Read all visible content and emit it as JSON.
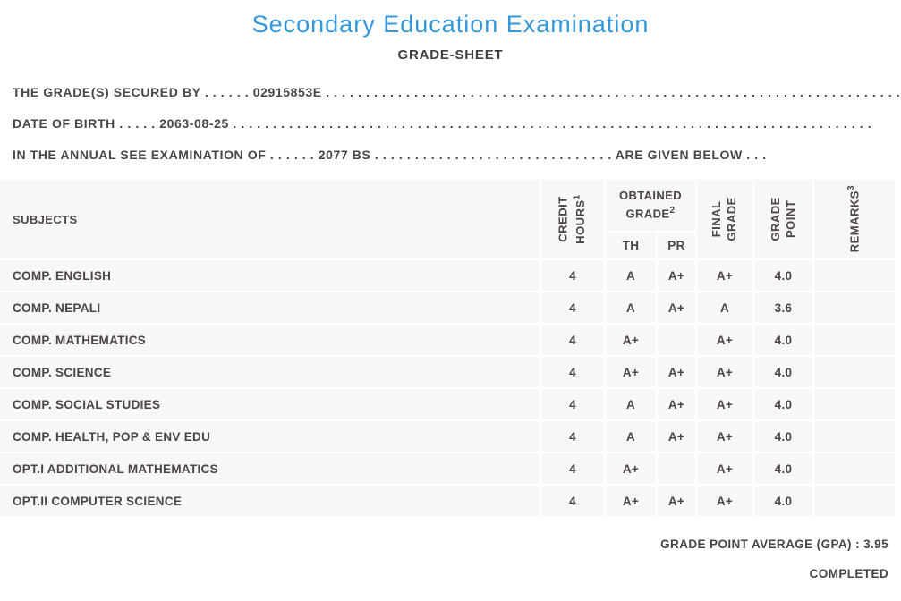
{
  "header": {
    "title": "Secondary Education Examination",
    "subtitle": "GRADE-SHEET"
  },
  "info_lines": [
    "THE GRADE(S) SECURED BY . . . . . . 02915853E . . . . . . . . . . . . . . . . . . . . . . . . . . . . . . . . . . . . . . . . . . . . . . . . . . . . . . . . . . . . . . . . . . . . . . . .",
    "DATE OF BIRTH . . . . . 2063-08-25 . . . . . . . . . . . . . . . . . . . . . . . . . . . . . . . . . . . . . . . . . . . . . . . . . . . . . . . . . . . . . . . . . . . . . . . . . . . . . . . .",
    "IN THE ANNUAL SEE EXAMINATION OF . . . . . . 2077 BS . . . . . . . . . . . . . . . . . . . . . . . . . . . . . . ARE GIVEN BELOW . . ."
  ],
  "table": {
    "headers": {
      "subjects": "SUBJECTS",
      "credit_hours": {
        "label": "CREDIT\nHOURS",
        "sup": "1"
      },
      "obtained_grade": {
        "label": "OBTAINED\nGRADE",
        "sup": "2"
      },
      "th": "TH",
      "pr": "PR",
      "final_grade": {
        "label": "FINAL\nGRADE"
      },
      "grade_point": {
        "label": "GRADE\nPOINT"
      },
      "remarks": {
        "label": "REMARKS",
        "sup": "3"
      }
    },
    "rows": [
      {
        "subject": "COMP. ENGLISH",
        "credit": "4",
        "th": "A",
        "pr": "A+",
        "final": "A+",
        "point": "4.0",
        "remarks": ""
      },
      {
        "subject": "COMP. NEPALI",
        "credit": "4",
        "th": "A",
        "pr": "A+",
        "final": "A",
        "point": "3.6",
        "remarks": ""
      },
      {
        "subject": "COMP. MATHEMATICS",
        "credit": "4",
        "th": "A+",
        "pr": "",
        "final": "A+",
        "point": "4.0",
        "remarks": ""
      },
      {
        "subject": "COMP. SCIENCE",
        "credit": "4",
        "th": "A+",
        "pr": "A+",
        "final": "A+",
        "point": "4.0",
        "remarks": ""
      },
      {
        "subject": "COMP. SOCIAL STUDIES",
        "credit": "4",
        "th": "A",
        "pr": "A+",
        "final": "A+",
        "point": "4.0",
        "remarks": ""
      },
      {
        "subject": "COMP. HEALTH, POP & ENV EDU",
        "credit": "4",
        "th": "A",
        "pr": "A+",
        "final": "A+",
        "point": "4.0",
        "remarks": ""
      },
      {
        "subject": "OPT.I ADDITIONAL MATHEMATICS",
        "credit": "4",
        "th": "A+",
        "pr": "",
        "final": "A+",
        "point": "4.0",
        "remarks": ""
      },
      {
        "subject": "OPT.II COMPUTER SCIENCE",
        "credit": "4",
        "th": "A+",
        "pr": "A+",
        "final": "A+",
        "point": "4.0",
        "remarks": ""
      }
    ]
  },
  "footer": {
    "gpa_line": "GRADE POINT AVERAGE (GPA) : 3.95",
    "status": "COMPLETED"
  },
  "colors": {
    "title_blue": "#3498db",
    "text": "#4a4545",
    "cell_bg": "#f8f7f5"
  }
}
